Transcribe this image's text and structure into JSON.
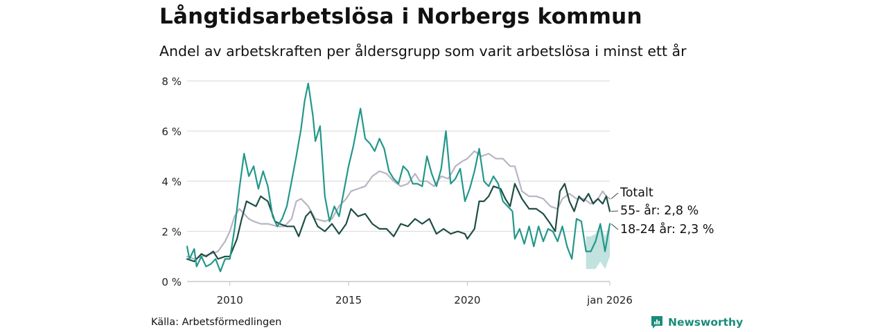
{
  "title": "Långtidsarbetslösa i Norbergs kommun",
  "subtitle": "Andel av arbetskraften per åldersgrupp som varit arbetslösa i minst ett år",
  "source": "Källa: Arbetsförmedlingen",
  "logo": {
    "name": "Newsworthy",
    "icon": "newsworthy-logo-icon",
    "color": "#1a8c7a"
  },
  "chart_data": {
    "type": "line",
    "title": "Långtidsarbetslösa i Norbergs kommun",
    "xlabel": "",
    "ylabel": "",
    "x_range": [
      2008.2,
      2026.0
    ],
    "ylim": [
      0,
      8
    ],
    "yticks": [
      0,
      2,
      4,
      6,
      8
    ],
    "ytick_labels": [
      "0 %",
      "2 %",
      "4 %",
      "6 %",
      "8 %"
    ],
    "xticks": [
      2010,
      2015,
      2020,
      2026
    ],
    "xtick_labels": [
      "2010",
      "2015",
      "2020",
      "jan 2026"
    ],
    "grid": true,
    "series": [
      {
        "name": "Totalt",
        "label": "Totalt",
        "color": "#b9b4c3",
        "points": [
          [
            2008.2,
            1.0
          ],
          [
            2008.5,
            0.9
          ],
          [
            2008.8,
            1.0
          ],
          [
            2009.2,
            1.1
          ],
          [
            2009.5,
            1.2
          ],
          [
            2009.8,
            1.6
          ],
          [
            2010.0,
            2.0
          ],
          [
            2010.2,
            2.6
          ],
          [
            2010.4,
            2.9
          ],
          [
            2010.6,
            2.7
          ],
          [
            2010.8,
            2.5
          ],
          [
            2011.0,
            2.4
          ],
          [
            2011.3,
            2.3
          ],
          [
            2011.6,
            2.3
          ],
          [
            2012.0,
            2.2
          ],
          [
            2012.3,
            2.2
          ],
          [
            2012.6,
            2.5
          ],
          [
            2012.8,
            3.2
          ],
          [
            2013.0,
            3.3
          ],
          [
            2013.3,
            3.0
          ],
          [
            2013.6,
            2.5
          ],
          [
            2014.0,
            2.4
          ],
          [
            2014.3,
            2.5
          ],
          [
            2014.6,
            3.0
          ],
          [
            2014.9,
            3.3
          ],
          [
            2015.1,
            3.6
          ],
          [
            2015.4,
            3.7
          ],
          [
            2015.7,
            3.8
          ],
          [
            2016.0,
            4.2
          ],
          [
            2016.3,
            4.4
          ],
          [
            2016.6,
            4.3
          ],
          [
            2016.9,
            4.0
          ],
          [
            2017.2,
            3.8
          ],
          [
            2017.5,
            3.9
          ],
          [
            2017.8,
            4.3
          ],
          [
            2018.0,
            4.0
          ],
          [
            2018.3,
            4.0
          ],
          [
            2018.6,
            3.8
          ],
          [
            2018.9,
            4.2
          ],
          [
            2019.2,
            4.1
          ],
          [
            2019.5,
            4.6
          ],
          [
            2019.8,
            4.8
          ],
          [
            2020.0,
            4.9
          ],
          [
            2020.3,
            5.2
          ],
          [
            2020.6,
            5.0
          ],
          [
            2020.9,
            5.1
          ],
          [
            2021.2,
            4.9
          ],
          [
            2021.5,
            4.9
          ],
          [
            2021.8,
            4.6
          ],
          [
            2022.0,
            4.6
          ],
          [
            2022.3,
            3.6
          ],
          [
            2022.6,
            3.4
          ],
          [
            2022.9,
            3.4
          ],
          [
            2023.2,
            3.3
          ],
          [
            2023.5,
            3.0
          ],
          [
            2023.8,
            2.9
          ],
          [
            2024.0,
            3.3
          ],
          [
            2024.3,
            3.5
          ],
          [
            2024.6,
            3.3
          ],
          [
            2024.9,
            3.3
          ],
          [
            2025.2,
            3.1
          ],
          [
            2025.5,
            3.3
          ],
          [
            2025.7,
            3.6
          ],
          [
            2025.85,
            3.4
          ],
          [
            2026.0,
            3.3
          ]
        ]
      },
      {
        "name": "55- år",
        "label": "55- år: 2,8 %",
        "color": "#1e4d45",
        "points": [
          [
            2008.2,
            0.9
          ],
          [
            2008.5,
            0.8
          ],
          [
            2008.8,
            1.1
          ],
          [
            2009.0,
            1.0
          ],
          [
            2009.3,
            1.2
          ],
          [
            2009.5,
            0.9
          ],
          [
            2009.8,
            1.0
          ],
          [
            2010.0,
            1.0
          ],
          [
            2010.3,
            1.7
          ],
          [
            2010.5,
            2.5
          ],
          [
            2010.7,
            3.2
          ],
          [
            2010.9,
            3.1
          ],
          [
            2011.1,
            3.0
          ],
          [
            2011.3,
            3.4
          ],
          [
            2011.6,
            3.2
          ],
          [
            2011.9,
            2.4
          ],
          [
            2012.1,
            2.3
          ],
          [
            2012.4,
            2.2
          ],
          [
            2012.7,
            2.2
          ],
          [
            2012.9,
            1.8
          ],
          [
            2013.2,
            2.6
          ],
          [
            2013.4,
            2.8
          ],
          [
            2013.7,
            2.2
          ],
          [
            2014.0,
            2.0
          ],
          [
            2014.3,
            2.3
          ],
          [
            2014.6,
            1.9
          ],
          [
            2014.9,
            2.3
          ],
          [
            2015.1,
            2.9
          ],
          [
            2015.4,
            2.6
          ],
          [
            2015.7,
            2.7
          ],
          [
            2016.0,
            2.3
          ],
          [
            2016.3,
            2.1
          ],
          [
            2016.6,
            2.1
          ],
          [
            2016.9,
            1.8
          ],
          [
            2017.2,
            2.3
          ],
          [
            2017.5,
            2.2
          ],
          [
            2017.8,
            2.5
          ],
          [
            2018.1,
            2.3
          ],
          [
            2018.4,
            2.5
          ],
          [
            2018.7,
            1.9
          ],
          [
            2019.0,
            2.1
          ],
          [
            2019.3,
            1.9
          ],
          [
            2019.6,
            2.0
          ],
          [
            2019.9,
            1.9
          ],
          [
            2020.0,
            1.7
          ],
          [
            2020.3,
            2.1
          ],
          [
            2020.5,
            3.2
          ],
          [
            2020.7,
            3.2
          ],
          [
            2020.9,
            3.4
          ],
          [
            2021.1,
            3.8
          ],
          [
            2021.4,
            3.7
          ],
          [
            2021.6,
            3.3
          ],
          [
            2021.8,
            3.0
          ],
          [
            2022.0,
            3.9
          ],
          [
            2022.3,
            3.3
          ],
          [
            2022.6,
            2.9
          ],
          [
            2022.9,
            2.9
          ],
          [
            2023.2,
            2.7
          ],
          [
            2023.5,
            2.3
          ],
          [
            2023.7,
            2.0
          ],
          [
            2023.9,
            3.6
          ],
          [
            2024.1,
            3.9
          ],
          [
            2024.3,
            3.2
          ],
          [
            2024.5,
            2.8
          ],
          [
            2024.7,
            3.4
          ],
          [
            2024.9,
            3.2
          ],
          [
            2025.1,
            3.5
          ],
          [
            2025.3,
            3.1
          ],
          [
            2025.5,
            3.3
          ],
          [
            2025.7,
            3.1
          ],
          [
            2025.85,
            3.4
          ],
          [
            2026.0,
            2.8
          ]
        ]
      },
      {
        "name": "18-24 år",
        "label": "18-24 år: 2,3 %",
        "color": "#22978a",
        "points": [
          [
            2008.2,
            1.4
          ],
          [
            2008.3,
            0.9
          ],
          [
            2008.5,
            1.3
          ],
          [
            2008.6,
            0.6
          ],
          [
            2008.8,
            1.0
          ],
          [
            2009.0,
            0.6
          ],
          [
            2009.2,
            0.7
          ],
          [
            2009.4,
            0.9
          ],
          [
            2009.6,
            0.4
          ],
          [
            2009.8,
            0.9
          ],
          [
            2010.0,
            0.9
          ],
          [
            2010.2,
            2.1
          ],
          [
            2010.4,
            3.7
          ],
          [
            2010.6,
            5.1
          ],
          [
            2010.8,
            4.2
          ],
          [
            2011.0,
            4.6
          ],
          [
            2011.2,
            3.7
          ],
          [
            2011.4,
            4.4
          ],
          [
            2011.6,
            3.8
          ],
          [
            2011.8,
            2.6
          ],
          [
            2012.0,
            2.2
          ],
          [
            2012.2,
            2.5
          ],
          [
            2012.4,
            3.0
          ],
          [
            2012.6,
            4.0
          ],
          [
            2012.8,
            5.0
          ],
          [
            2013.0,
            6.1
          ],
          [
            2013.15,
            7.2
          ],
          [
            2013.3,
            7.9
          ],
          [
            2013.5,
            6.6
          ],
          [
            2013.6,
            5.6
          ],
          [
            2013.8,
            6.2
          ],
          [
            2014.0,
            3.4
          ],
          [
            2014.2,
            2.4
          ],
          [
            2014.4,
            3.0
          ],
          [
            2014.6,
            2.6
          ],
          [
            2014.8,
            3.6
          ],
          [
            2015.0,
            4.6
          ],
          [
            2015.2,
            5.4
          ],
          [
            2015.4,
            6.4
          ],
          [
            2015.5,
            6.9
          ],
          [
            2015.7,
            5.7
          ],
          [
            2015.9,
            5.5
          ],
          [
            2016.1,
            5.2
          ],
          [
            2016.3,
            5.7
          ],
          [
            2016.5,
            5.3
          ],
          [
            2016.7,
            4.4
          ],
          [
            2016.9,
            4.1
          ],
          [
            2017.1,
            3.9
          ],
          [
            2017.3,
            4.6
          ],
          [
            2017.5,
            4.4
          ],
          [
            2017.7,
            3.9
          ],
          [
            2017.9,
            3.9
          ],
          [
            2018.1,
            3.8
          ],
          [
            2018.3,
            5.0
          ],
          [
            2018.5,
            4.3
          ],
          [
            2018.7,
            3.8
          ],
          [
            2018.9,
            4.5
          ],
          [
            2019.1,
            6.0
          ],
          [
            2019.3,
            3.9
          ],
          [
            2019.5,
            4.1
          ],
          [
            2019.7,
            4.5
          ],
          [
            2019.9,
            3.2
          ],
          [
            2020.1,
            3.7
          ],
          [
            2020.3,
            4.4
          ],
          [
            2020.5,
            5.3
          ],
          [
            2020.7,
            4.0
          ],
          [
            2020.9,
            3.8
          ],
          [
            2021.1,
            4.2
          ],
          [
            2021.3,
            3.9
          ],
          [
            2021.5,
            3.2
          ],
          [
            2021.7,
            3.0
          ],
          [
            2021.9,
            2.8
          ],
          [
            2022.0,
            1.7
          ],
          [
            2022.2,
            2.1
          ],
          [
            2022.4,
            1.5
          ],
          [
            2022.6,
            2.2
          ],
          [
            2022.8,
            1.4
          ],
          [
            2023.0,
            2.2
          ],
          [
            2023.2,
            1.6
          ],
          [
            2023.4,
            2.1
          ],
          [
            2023.6,
            2.0
          ],
          [
            2023.8,
            1.6
          ],
          [
            2024.0,
            2.2
          ],
          [
            2024.2,
            1.4
          ],
          [
            2024.4,
            0.9
          ],
          [
            2024.6,
            2.5
          ],
          [
            2024.8,
            2.4
          ],
          [
            2025.0,
            1.2
          ],
          [
            2025.2,
            1.2
          ],
          [
            2025.4,
            1.6
          ],
          [
            2025.6,
            2.3
          ],
          [
            2025.8,
            1.2
          ],
          [
            2026.0,
            2.3
          ]
        ],
        "band": [
          [
            2025.0,
            0.5,
            1.8
          ],
          [
            2025.2,
            0.5,
            1.8
          ],
          [
            2025.4,
            0.5,
            1.9
          ],
          [
            2025.6,
            0.8,
            2.3
          ],
          [
            2025.8,
            0.5,
            1.8
          ],
          [
            2026.0,
            1.0,
            2.3
          ]
        ]
      }
    ]
  }
}
